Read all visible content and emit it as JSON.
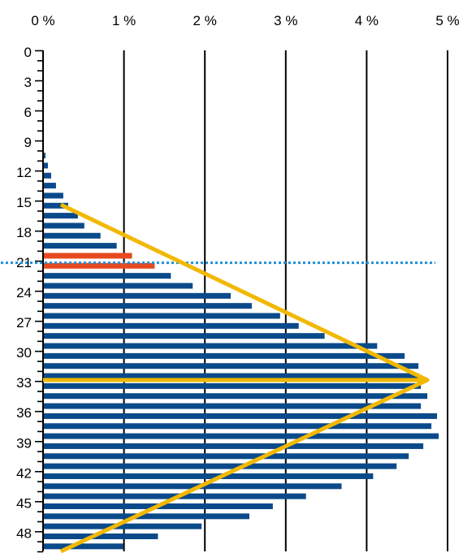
{
  "chart_data": {
    "type": "bar",
    "orientation": "horizontal",
    "title": "",
    "xlabel": "",
    "ylabel": "",
    "x_tick_labels": [
      "0 %",
      "1 %",
      "2 %",
      "3 %",
      "4 %",
      "5 %"
    ],
    "x_ticks": [
      0,
      1,
      2,
      3,
      4,
      5
    ],
    "xlim": [
      0,
      5
    ],
    "x_axis_position": "top",
    "y_tick_labels": [
      "0",
      "3",
      "6",
      "9",
      "12",
      "15",
      "18",
      "21",
      "24",
      "27",
      "30",
      "33",
      "36",
      "39",
      "42",
      "45",
      "48"
    ],
    "y_ticks": [
      0,
      3,
      6,
      9,
      12,
      15,
      18,
      21,
      24,
      27,
      30,
      33,
      36,
      39,
      42,
      45,
      48
    ],
    "ylim": [
      0,
      50
    ],
    "grid": {
      "vertical": true,
      "horizontal": false
    },
    "categories": [
      0,
      1,
      2,
      3,
      4,
      5,
      6,
      7,
      8,
      9,
      10,
      11,
      12,
      13,
      14,
      15,
      16,
      17,
      18,
      19,
      20,
      21,
      22,
      23,
      24,
      25,
      26,
      27,
      28,
      29,
      30,
      31,
      32,
      33,
      34,
      35,
      36,
      37,
      38,
      39,
      40,
      41,
      42,
      43,
      44,
      45,
      46,
      47,
      48,
      49
    ],
    "values": [
      0,
      0,
      0,
      0,
      0,
      0,
      0,
      0,
      0,
      0.01,
      0.03,
      0.06,
      0.1,
      0.16,
      0.25,
      0.31,
      0.43,
      0.51,
      0.71,
      0.91,
      1.1,
      1.38,
      1.58,
      1.85,
      2.32,
      2.58,
      2.93,
      3.16,
      3.48,
      4.13,
      4.47,
      4.64,
      4.64,
      4.67,
      4.75,
      4.67,
      4.87,
      4.8,
      4.89,
      4.7,
      4.52,
      4.37,
      4.08,
      3.69,
      3.25,
      2.84,
      2.55,
      1.96,
      1.42,
      0.99
    ],
    "bar_color": "#0a4a8a",
    "highlight_bars": [
      {
        "category": 20,
        "value": 1.1,
        "color": "#e84a1f"
      },
      {
        "category": 21,
        "value": 1.38,
        "color": "#e84a1f"
      }
    ],
    "reference_line": {
      "y": 21.2,
      "style": "dotted",
      "color": "#1e90d6"
    },
    "overlay": {
      "shape": "triangle",
      "color": "#f2b800",
      "vertices": [
        {
          "x": 0.22,
          "y": 15.4
        },
        {
          "x": 4.75,
          "y": 32.9
        },
        {
          "x": 0.22,
          "y": 50
        }
      ],
      "baseline": {
        "y": 32.9,
        "x_from": 0,
        "x_to": 4.75
      }
    }
  }
}
